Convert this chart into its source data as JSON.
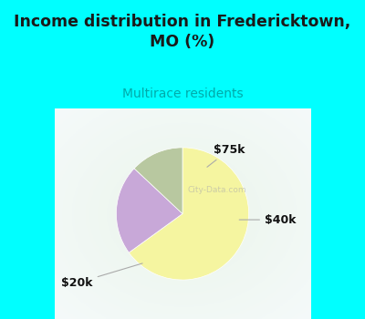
{
  "title": "Income distribution in Fredericktown,\nMO (%)",
  "subtitle": "Multirace residents",
  "title_color": "#1a1a1a",
  "subtitle_color": "#00aaaa",
  "background_color": "#00ffff",
  "slices": [
    {
      "label": "$20k",
      "value": 65,
      "color": "#f5f5a0"
    },
    {
      "label": "$75k",
      "value": 22,
      "color": "#c8a8d8"
    },
    {
      "label": "$40k",
      "value": 13,
      "color": "#b8c8a0"
    }
  ],
  "figsize": [
    4.0,
    3.5
  ],
  "dpi": 100
}
